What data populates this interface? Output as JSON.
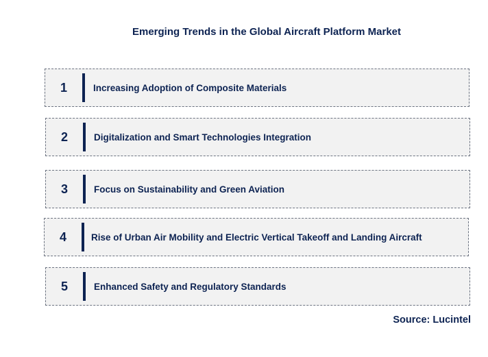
{
  "title": "Emerging Trends in the Global Aircraft Platform Market",
  "trends": [
    {
      "number": "1",
      "label": "Increasing Adoption of Composite Materials"
    },
    {
      "number": "2",
      "label": "Digitalization and Smart Technologies Integration"
    },
    {
      "number": "3",
      "label": "Focus on Sustainability and Green Aviation"
    },
    {
      "number": "4",
      "label": "Rise of Urban Air Mobility and Electric Vertical Takeoff and Landing Aircraft"
    },
    {
      "number": "5",
      "label": "Enhanced Safety and Regulatory Standards"
    }
  ],
  "source": "Source: Lucintel",
  "colors": {
    "text": "#0d2352",
    "box_fill": "#f2f2f2",
    "box_border": "#6b7280"
  }
}
